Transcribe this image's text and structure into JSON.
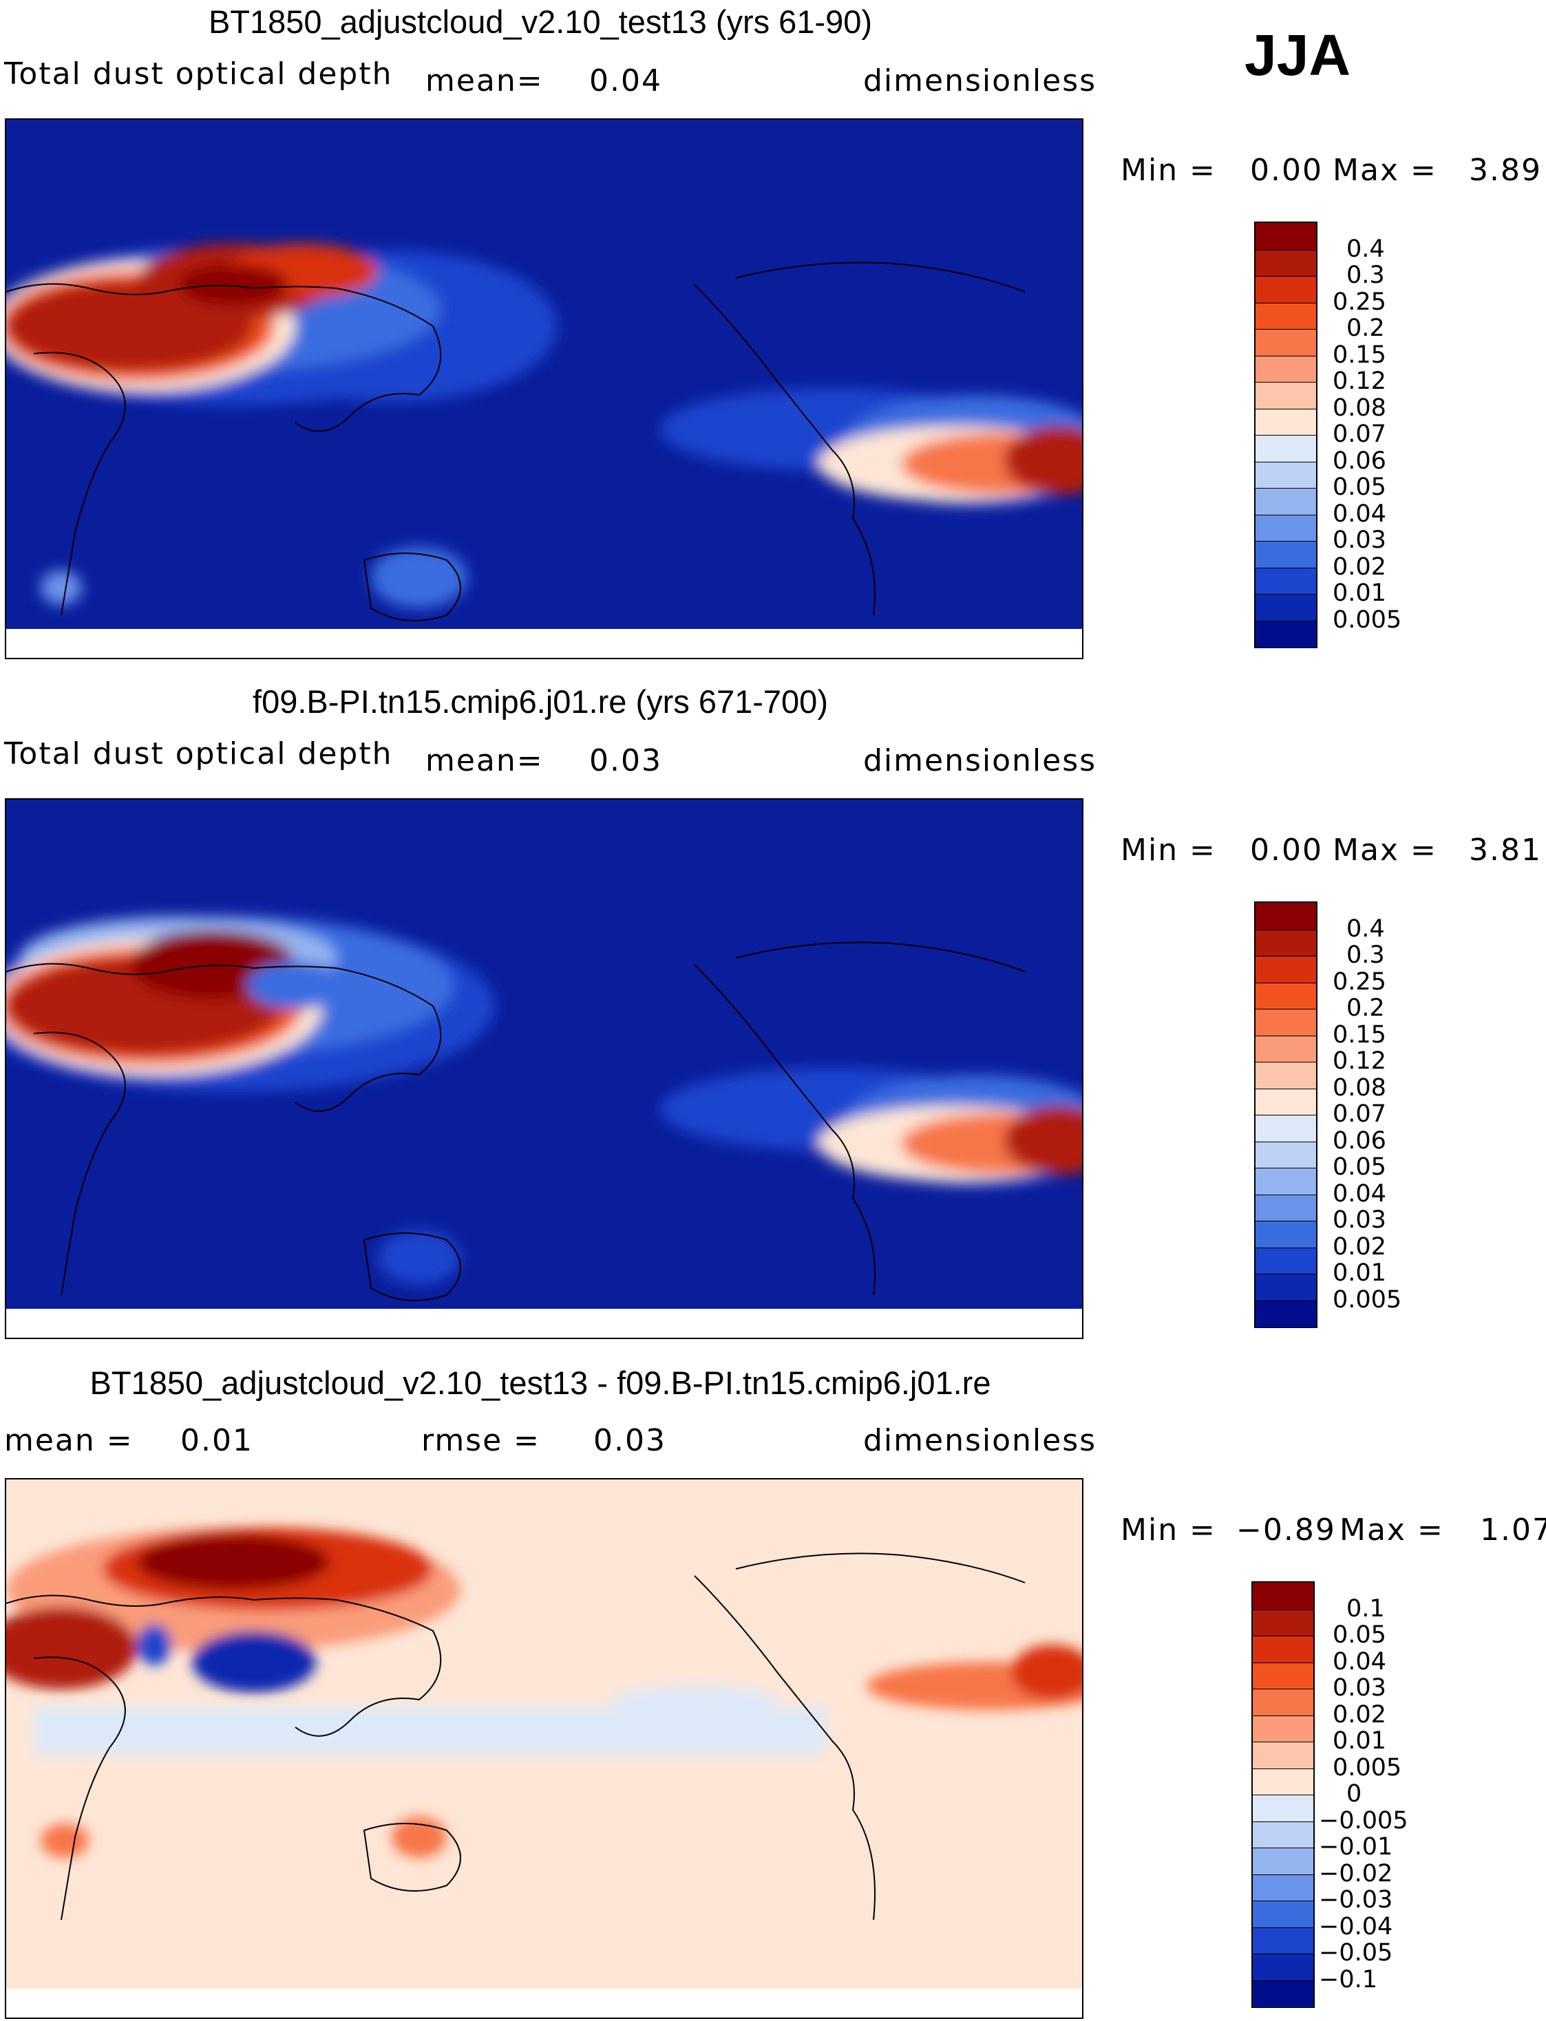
{
  "season": "JJA",
  "panels": [
    {
      "title": "BT1850_adjustcloud_v2.10_test13 (yrs 61-90)",
      "variable": "Total dust optical depth",
      "stat1_label": "mean=",
      "stat1_value": "0.04",
      "units": "dimensionless",
      "minmax": {
        "min_label": "Min =",
        "min": "0.00",
        "max_label": "Max =",
        "max": "3.89"
      }
    },
    {
      "title": "f09.B-PI.tn15.cmip6.j01.re (yrs 671-700)",
      "variable": "Total dust optical depth",
      "stat1_label": "mean=",
      "stat1_value": "0.03",
      "units": "dimensionless",
      "minmax": {
        "min_label": "Min =",
        "min": "0.00",
        "max_label": "Max =",
        "max": "3.81"
      }
    },
    {
      "title": "BT1850_adjustcloud_v2.10_test13 - f09.B-PI.tn15.cmip6.j01.re",
      "stat1_label": "mean =",
      "stat1_value": "0.01",
      "stat2_label": "rmse =",
      "stat2_value": "0.03",
      "units": "dimensionless",
      "minmax": {
        "min_label": "Min =",
        "min": "−0.89",
        "max_label": "Max =",
        "max": "1.07"
      }
    }
  ],
  "chart_data": [
    {
      "type": "heatmap",
      "title": "BT1850_adjustcloud_v2.10_test13 (yrs 61-90)",
      "field": "Total dust optical depth",
      "season": "JJA",
      "mean": 0.04,
      "min": 0.0,
      "max": 3.89,
      "colorbar_levels": [
        "0.4",
        "0.3",
        "0.25",
        "0.2",
        "0.15",
        "0.12",
        "0.08",
        "0.07",
        "0.06",
        "0.05",
        "0.04",
        "0.03",
        "0.02",
        "0.01",
        "0.005"
      ],
      "colorbar_colors": [
        "#8b0000",
        "#b01a0a",
        "#d9300f",
        "#f2531f",
        "#f7764a",
        "#fa9c7a",
        "#fcc6aa",
        "#fde6d6",
        "#dde9f8",
        "#bcd2f5",
        "#94b4ef",
        "#6a93ea",
        "#3a6de0",
        "#1b45cf",
        "#0b28b0",
        "#000d8c"
      ],
      "domain": {
        "lon_range": [
          -20,
          340
        ],
        "lat_range": [
          -90,
          90
        ]
      }
    },
    {
      "type": "heatmap",
      "title": "f09.B-PI.tn15.cmip6.j01.re (yrs 671-700)",
      "field": "Total dust optical depth",
      "season": "JJA",
      "mean": 0.03,
      "min": 0.0,
      "max": 3.81,
      "colorbar_levels": [
        "0.4",
        "0.3",
        "0.25",
        "0.2",
        "0.15",
        "0.12",
        "0.08",
        "0.07",
        "0.06",
        "0.05",
        "0.04",
        "0.03",
        "0.02",
        "0.01",
        "0.005"
      ],
      "colorbar_colors": [
        "#8b0000",
        "#b01a0a",
        "#d9300f",
        "#f2531f",
        "#f7764a",
        "#fa9c7a",
        "#fcc6aa",
        "#fde6d6",
        "#dde9f8",
        "#bcd2f5",
        "#94b4ef",
        "#6a93ea",
        "#3a6de0",
        "#1b45cf",
        "#0b28b0",
        "#000d8c"
      ],
      "domain": {
        "lon_range": [
          -20,
          340
        ],
        "lat_range": [
          -90,
          90
        ]
      }
    },
    {
      "type": "heatmap",
      "title": "BT1850_adjustcloud_v2.10_test13 - f09.B-PI.tn15.cmip6.j01.re",
      "field": "Total dust optical depth difference",
      "season": "JJA",
      "mean": 0.01,
      "rmse": 0.03,
      "min": -0.89,
      "max": 1.07,
      "colorbar_levels": [
        "0.1",
        "0.05",
        "0.04",
        "0.03",
        "0.02",
        "0.01",
        "0.005",
        "0",
        "−0.005",
        "−0.01",
        "−0.02",
        "−0.03",
        "−0.04",
        "−0.05",
        "−0.1"
      ],
      "colorbar_colors": [
        "#8b0000",
        "#b01a0a",
        "#d9300f",
        "#f2531f",
        "#f7764a",
        "#fa9c7a",
        "#fcc6aa",
        "#fde6d6",
        "#dde9f8",
        "#bcd2f5",
        "#94b4ef",
        "#6a93ea",
        "#3a6de0",
        "#1b45cf",
        "#0b28b0",
        "#000d8c"
      ],
      "domain": {
        "lon_range": [
          -20,
          340
        ],
        "lat_range": [
          -90,
          90
        ]
      }
    }
  ]
}
